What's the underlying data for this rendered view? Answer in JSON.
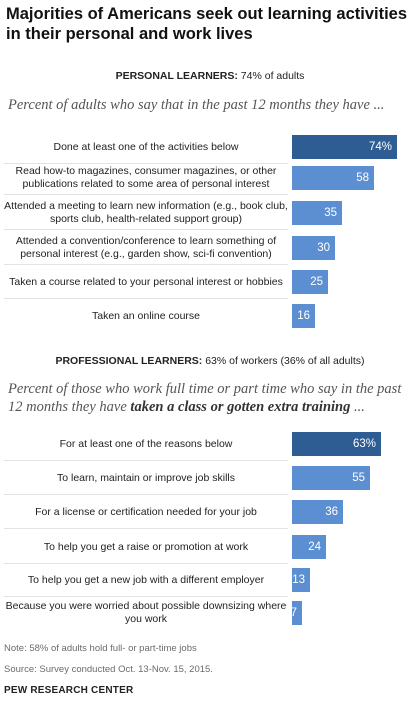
{
  "title": "Majorities of Americans seek out learning activities in their personal and work lives",
  "personal": {
    "heading_bold": "PERSONAL LEARNERS:",
    "heading_rest": " 74% of adults",
    "subtitle": "Percent of adults who say that in the past 12 months they have ..."
  },
  "professional": {
    "heading_bold": "PROFESSIONAL LEARNERS:",
    "heading_rest": " 63% of workers (36% of all adults)",
    "subtitle_plain": "Percent of those who work full time or part time who say in the past 12 months they have ",
    "subtitle_emph": "taken a class or gotten extra training",
    "subtitle_end": " ..."
  },
  "colors": {
    "highlight": "#2d5d93",
    "bar": "#5b8fd1"
  },
  "chart_data": [
    {
      "type": "bar",
      "orientation": "horizontal",
      "categories": [
        "Done at least one of the activities below",
        "Read how-to magazines, consumer magazines, or other publications related to some area of personal interest",
        "Attended a meeting to learn new information (e.g., book club, sports club, health-related support group)",
        "Attended a convention/conference to learn something of personal interest (e.g., garden show, sci-fi convention)",
        "Taken a course related to your personal interest or hobbies",
        "Taken an online course"
      ],
      "values": [
        74,
        58,
        35,
        30,
        25,
        16
      ],
      "value_labels": [
        "74%",
        "58",
        "35",
        "30",
        "25",
        "16"
      ],
      "highlight_index": 0,
      "xlim": [
        0,
        100
      ]
    },
    {
      "type": "bar",
      "orientation": "horizontal",
      "categories": [
        "For at least one of the reasons below",
        "To learn, maintain or improve job skills",
        "For a license or certification needed for your job",
        "To help you get a raise or promotion at work",
        "To help you get a new job with a different employer",
        "Because you were worried about possible downsizing where you work"
      ],
      "values": [
        63,
        55,
        36,
        24,
        13,
        7
      ],
      "value_labels": [
        "63%",
        "55",
        "36",
        "24",
        "13",
        "7"
      ],
      "highlight_index": 0,
      "xlim": [
        0,
        100
      ]
    }
  ],
  "footer": {
    "note": "Note: 58% of adults hold full- or part-time jobs",
    "source": "Source: Survey conducted Oct. 13-Nov. 15, 2015.",
    "brand": "PEW RESEARCH CENTER"
  }
}
